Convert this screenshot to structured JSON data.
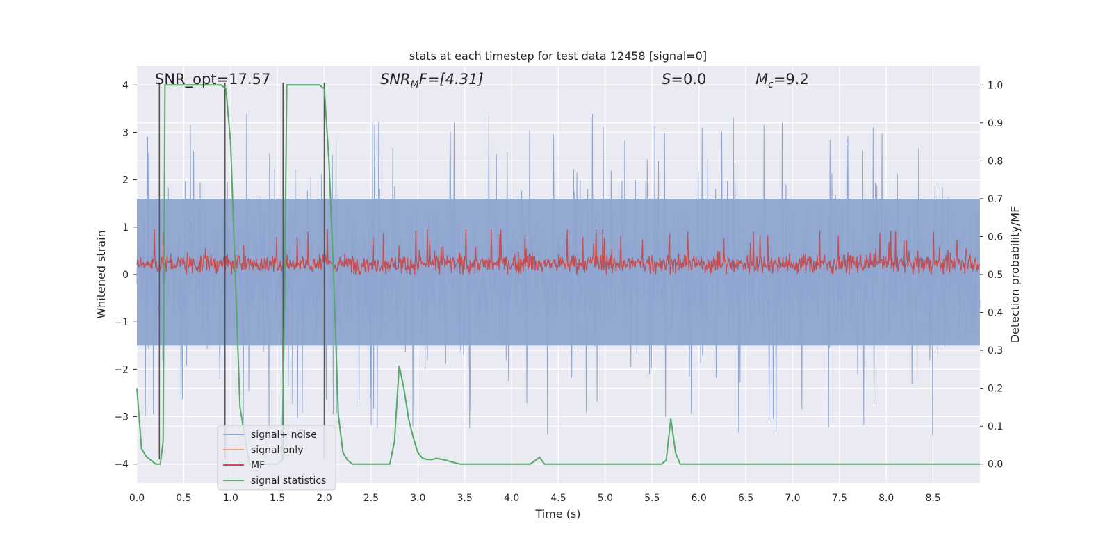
{
  "chart_data": {
    "type": "line",
    "title": "stats at each timestep for test data 12458 [signal=0]",
    "xlabel": "Time (s)",
    "ylabel": "Whitened strain",
    "y2label": "Detection probability/MF",
    "xlim": [
      0,
      9.0
    ],
    "ylim": [
      -4.4,
      4.4
    ],
    "y2lim": [
      -0.05,
      1.05
    ],
    "x_ticks": [
      "0.0",
      "0.5",
      "1.0",
      "1.5",
      "2.0",
      "2.5",
      "3.0",
      "3.5",
      "4.0",
      "4.5",
      "5.0",
      "5.5",
      "6.0",
      "6.5",
      "7.0",
      "7.5",
      "8.0",
      "8.5"
    ],
    "y_ticks": [
      "−4",
      "−3",
      "−2",
      "−1",
      "0",
      "1",
      "2",
      "3",
      "4"
    ],
    "y2_ticks": [
      "0.0",
      "0.1",
      "0.2",
      "0.3",
      "0.4",
      "0.5",
      "0.6",
      "0.7",
      "0.8",
      "0.9",
      "1.0"
    ],
    "grid": true,
    "annotations": {
      "snr_opt": "SNR_opt=17.57",
      "snr_mf_main": "SNR",
      "snr_mf_sub": "M",
      "snr_mf_rest": "F=[4.31]",
      "s_main": "S",
      "s_rest": "=0.0",
      "mc_main": "M",
      "mc_sub": "c",
      "mc_rest": "=9.2"
    },
    "legend": {
      "placement": "lower-left",
      "entries": [
        "signal+ noise",
        "signal only",
        "MF",
        "signal statistics"
      ]
    },
    "colors": {
      "signal_noise": "#8fa5cf",
      "signal_only": "#e8a17d",
      "mf": "#c44e52",
      "signal_statistics": "#55a868",
      "axes_bg": "#eaeaf2",
      "markers": "#555555"
    },
    "series": [
      {
        "name": "signal+ noise",
        "axis": "left",
        "description_values": {
          "band_upper": 1.6,
          "band_lower": -1.5,
          "spike_max": 4.0,
          "spike_min": -3.9
        }
      },
      {
        "name": "MF",
        "axis": "right",
        "description_values": {
          "baseline": 0.5,
          "peak": 0.62
        }
      },
      {
        "name": "signal statistics",
        "axis": "right",
        "x": [
          0.0,
          0.05,
          0.1,
          0.2,
          0.25,
          0.28,
          0.3,
          0.35,
          0.5,
          0.8,
          0.9,
          0.95,
          1.0,
          1.05,
          1.1,
          1.2,
          1.5,
          1.55,
          1.58,
          1.6,
          1.65,
          1.8,
          1.95,
          2.0,
          2.05,
          2.1,
          2.15,
          2.2,
          2.25,
          2.3,
          2.4,
          2.6,
          2.7,
          2.75,
          2.8,
          2.85,
          2.9,
          2.95,
          3.0,
          3.05,
          3.1,
          3.15,
          3.2,
          3.3,
          3.4,
          3.45,
          3.5,
          3.6,
          3.8,
          4.0,
          4.2,
          4.3,
          4.35,
          4.4,
          4.5,
          5.0,
          5.5,
          5.6,
          5.65,
          5.7,
          5.75,
          5.8,
          6.0,
          7.0,
          8.0,
          9.0
        ],
        "y": [
          0.2,
          0.04,
          0.02,
          0.0,
          0.0,
          0.06,
          1.0,
          1.0,
          1.0,
          1.0,
          1.0,
          0.99,
          0.85,
          0.5,
          0.15,
          0.0,
          0.0,
          0.01,
          0.5,
          1.0,
          1.0,
          1.0,
          1.0,
          0.99,
          0.8,
          0.5,
          0.13,
          0.03,
          0.01,
          0.0,
          0.0,
          0.0,
          0.0,
          0.06,
          0.26,
          0.2,
          0.12,
          0.07,
          0.03,
          0.015,
          0.012,
          0.012,
          0.015,
          0.01,
          0.003,
          0.0,
          0.0,
          0.0,
          0.0,
          0.0,
          0.0,
          0.018,
          0.0,
          0.0,
          0.0,
          0.0,
          0.0,
          0.0,
          0.01,
          0.12,
          0.03,
          0.0,
          0.0,
          0.0,
          0.0,
          0.0
        ]
      }
    ],
    "vertical_markers_x": [
      0.24,
      0.94,
      1.56,
      2.0
    ]
  }
}
